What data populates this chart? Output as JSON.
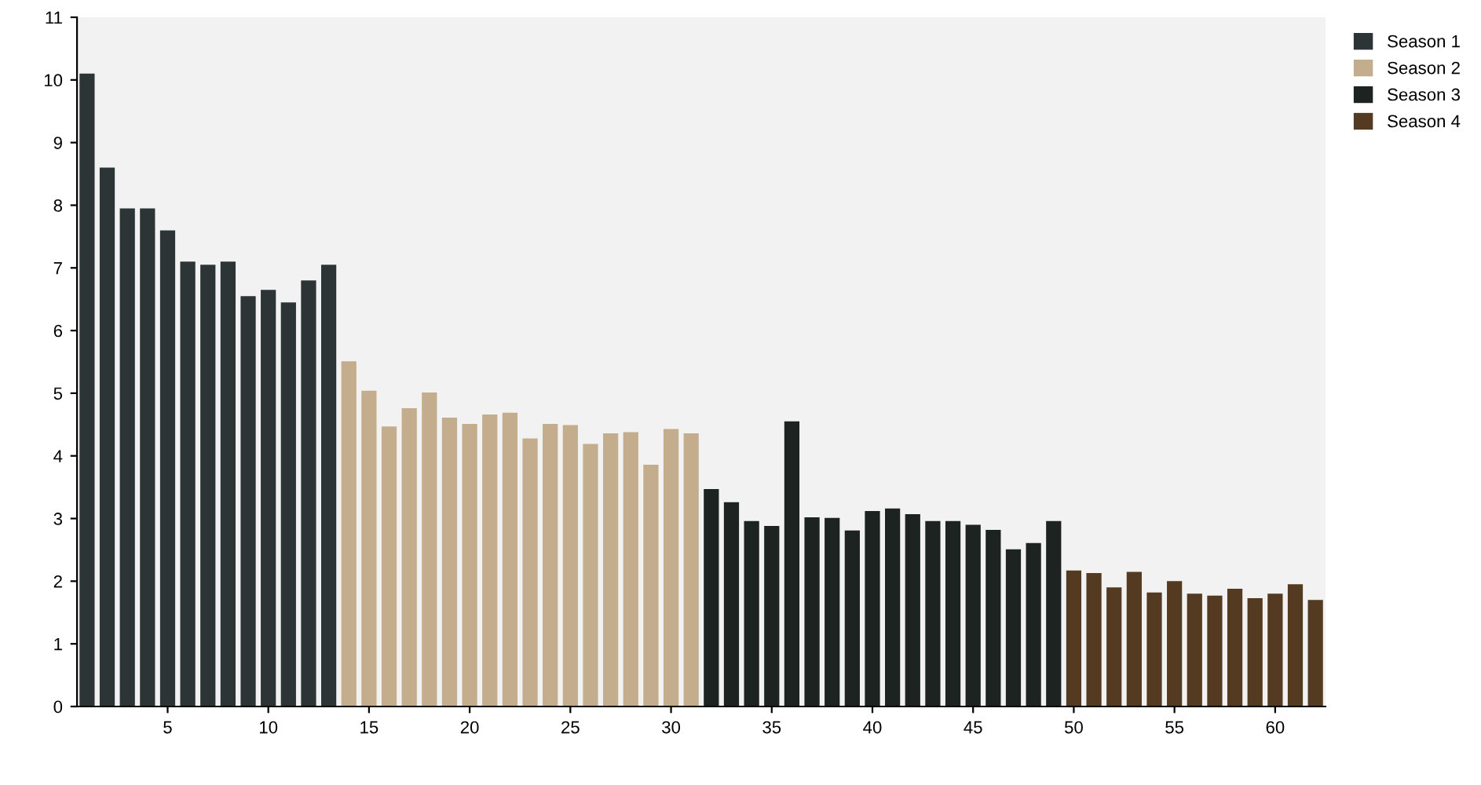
{
  "chart_data": {
    "type": "bar",
    "xlim": [
      0.5,
      62.5
    ],
    "xticks": [
      5,
      10,
      15,
      20,
      25,
      30,
      35,
      40,
      45,
      50,
      55,
      60
    ],
    "ylim": [
      0,
      11
    ],
    "yticks": [
      0,
      1,
      2,
      3,
      4,
      5,
      6,
      7,
      8,
      9,
      10,
      11
    ],
    "grid": false,
    "legend": "top right",
    "series": [
      {
        "name": "Season 1",
        "color": "#2d3436",
        "x": [
          1,
          2,
          3,
          4,
          5,
          6,
          7,
          8,
          9,
          10,
          11,
          12,
          13
        ],
        "values": [
          10.1,
          8.6,
          7.95,
          7.95,
          7.6,
          7.1,
          7.05,
          7.1,
          6.55,
          6.65,
          6.45,
          6.8,
          7.05
        ]
      },
      {
        "name": "Season 2",
        "color": "#c4ad8c",
        "x": [
          14,
          15,
          16,
          17,
          18,
          19,
          20,
          21,
          22,
          23,
          24,
          25,
          26,
          27,
          28,
          29,
          30,
          31
        ],
        "values": [
          5.51,
          5.04,
          4.47,
          4.76,
          5.01,
          4.61,
          4.51,
          4.66,
          4.69,
          4.28,
          4.51,
          4.49,
          4.19,
          4.36,
          4.38,
          3.86,
          4.43,
          4.36
        ]
      },
      {
        "name": "Season 3",
        "color": "#1c2320",
        "x": [
          32,
          33,
          34,
          35,
          36,
          37,
          38,
          39,
          40,
          41,
          42,
          43,
          44,
          45,
          46,
          47,
          48,
          49
        ],
        "values": [
          3.47,
          3.26,
          2.96,
          2.88,
          4.55,
          3.02,
          3.01,
          2.81,
          3.12,
          3.16,
          3.07,
          2.96,
          2.96,
          2.9,
          2.82,
          2.51,
          2.61,
          2.96
        ]
      },
      {
        "name": "Season 4",
        "color": "#553a22",
        "x": [
          50,
          51,
          52,
          53,
          54,
          55,
          56,
          57,
          58,
          59,
          60,
          61,
          62
        ],
        "values": [
          2.17,
          2.13,
          1.9,
          2.15,
          1.82,
          2.0,
          1.8,
          1.77,
          1.88,
          1.73,
          1.8,
          1.95,
          1.7
        ]
      }
    ]
  }
}
